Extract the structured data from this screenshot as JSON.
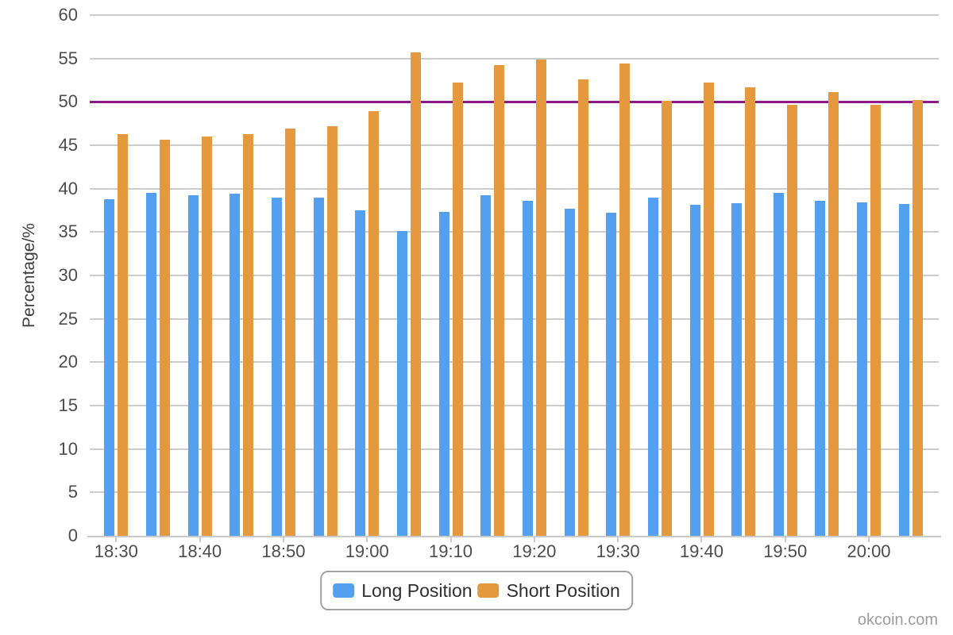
{
  "watermark": "okcoin.com",
  "chart_data": {
    "type": "bar",
    "title": "",
    "xlabel": "",
    "ylabel": "Percentage/%",
    "ylim": [
      0,
      60
    ],
    "y_ticks": [
      0,
      5,
      10,
      15,
      20,
      25,
      30,
      35,
      40,
      45,
      50,
      55,
      60
    ],
    "grid": true,
    "legend_position": "bottom",
    "x_label_interval": 2,
    "categories": [
      "18:30",
      "18:35",
      "18:40",
      "18:45",
      "18:50",
      "18:55",
      "19:00",
      "19:05",
      "19:10",
      "19:15",
      "19:20",
      "19:25",
      "19:30",
      "19:35",
      "19:40",
      "19:45",
      "19:50",
      "19:55",
      "20:00",
      "20:05"
    ],
    "series": [
      {
        "name": "Long Position",
        "color": "#52A0EF",
        "values": [
          38.8,
          39.5,
          39.2,
          39.4,
          39.0,
          39.0,
          37.5,
          35.1,
          37.3,
          39.2,
          38.6,
          37.7,
          37.2,
          39.0,
          38.1,
          38.3,
          39.5,
          38.6,
          38.4,
          38.2
        ]
      },
      {
        "name": "Short Position",
        "color": "#E5993E",
        "values": [
          46.3,
          45.6,
          46.0,
          46.3,
          46.9,
          47.2,
          48.9,
          55.7,
          52.2,
          54.2,
          54.9,
          52.6,
          54.4,
          50.1,
          52.2,
          51.7,
          49.7,
          51.1,
          49.7,
          50.2
        ]
      }
    ],
    "threshold_line": {
      "value": 50,
      "color": "#8B1A8B"
    },
    "colors": {
      "gridline": "#cccccc",
      "axis": "#c9c9c9",
      "tick_text": "#4c4c4c"
    }
  }
}
